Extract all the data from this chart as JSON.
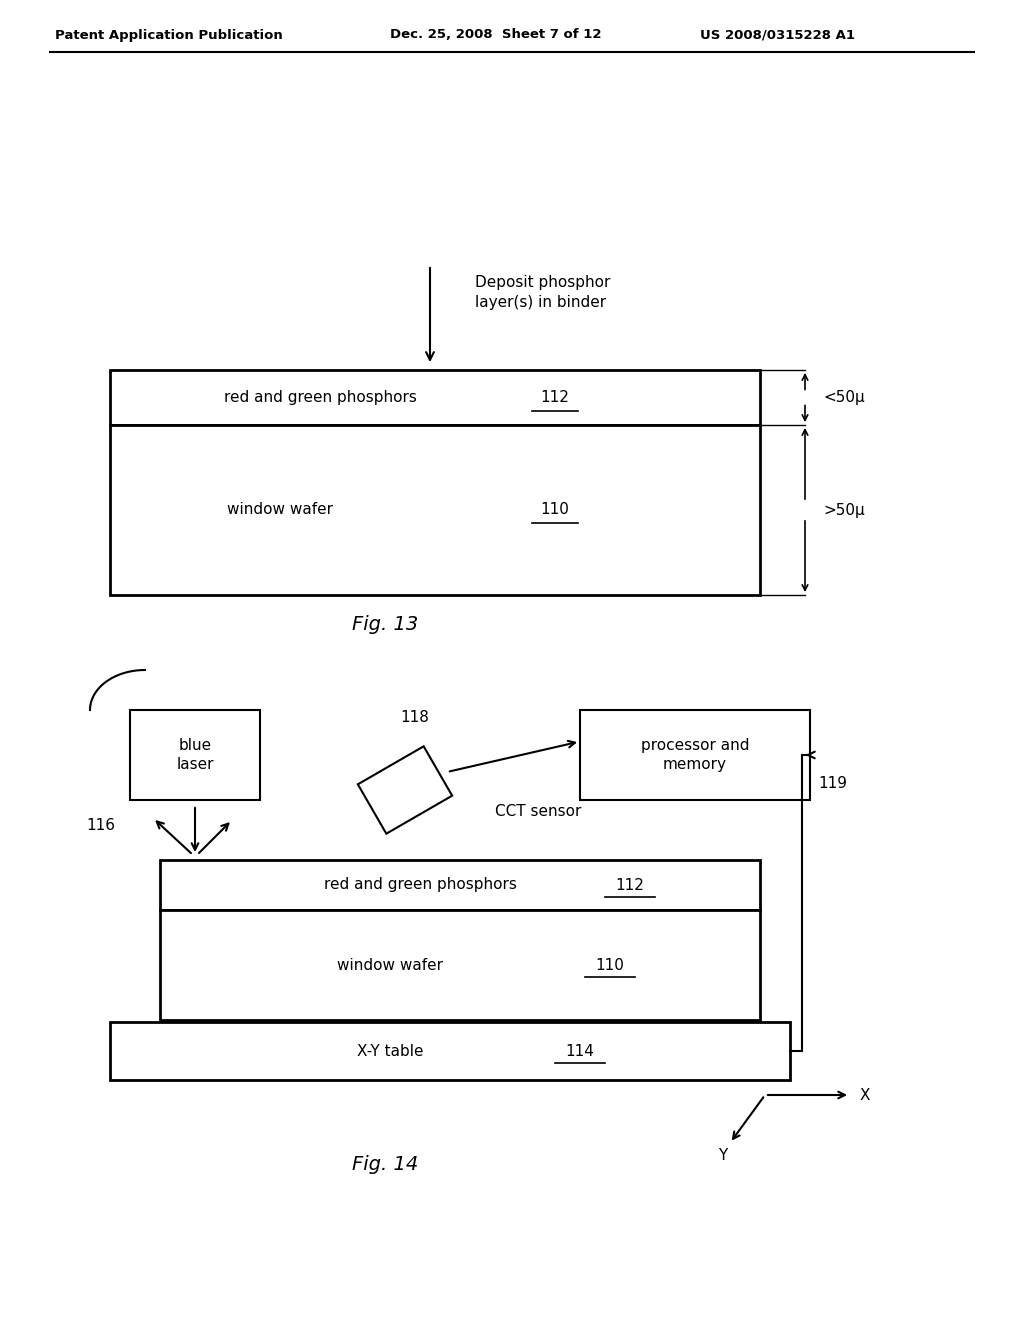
{
  "bg_color": "#ffffff",
  "header_left": "Patent Application Publication",
  "header_mid": "Dec. 25, 2008  Sheet 7 of 12",
  "header_right": "US 2008/0315228 A1",
  "fig13_caption": "Fig. 13",
  "fig14_caption": "Fig. 14",
  "fig13_arrow_text": "Deposit phosphor\nlayer(s) in binder",
  "fig13_phosphor_label": "red and green phosphors",
  "fig13_phosphor_num": "112",
  "fig13_window_label": "window wafer",
  "fig13_window_num": "110",
  "fig13_dim1": "<50μ",
  "fig13_dim2": ">50μ",
  "fig14_blue_laser_label": "blue\nlaser",
  "fig14_blue_laser_num": "116",
  "fig14_cct_num": "118",
  "fig14_cct_label": "CCT sensor",
  "fig14_proc_label": "processor and\nmemory",
  "fig14_proc_num": "119",
  "fig14_phosphor_label": "red and green phosphors",
  "fig14_phosphor_num": "112",
  "fig14_window_label": "window wafer",
  "fig14_window_num": "110",
  "fig14_table_label": "X-Y table",
  "fig14_table_num": "114",
  "fig14_x_label": "X",
  "fig14_y_label": "Y"
}
